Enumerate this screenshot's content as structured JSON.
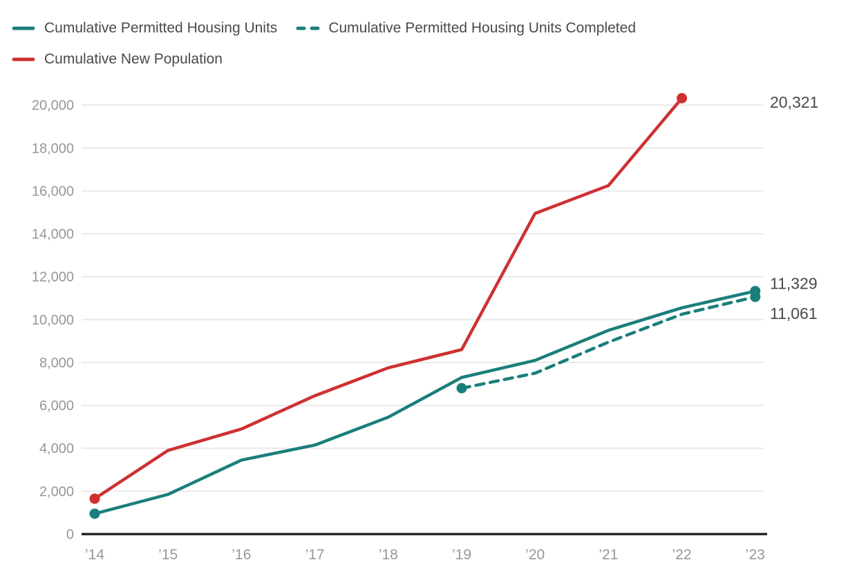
{
  "page": {
    "background": "#ffffff"
  },
  "legend": {
    "position": "top-left",
    "text_color": "#4a4a4a",
    "items": [
      {
        "label": "Cumulative Permitted Housing Units",
        "style": "solid",
        "color": "#1a7f7a"
      },
      {
        "label": "Cumulative Permitted Housing Units Completed",
        "style": "dashed",
        "color": "#1a7f7a"
      },
      {
        "label": "Cumulative New Population",
        "style": "solid",
        "color": "#ce3131"
      }
    ]
  },
  "chart_data": {
    "type": "line",
    "x": [
      "’14",
      "’15",
      "’16",
      "’17",
      "’18",
      "’19",
      "’20",
      "’21",
      "’22",
      "’23"
    ],
    "xlabel": "",
    "ylabel": "",
    "ylim": [
      0,
      20000
    ],
    "ytick_values": [
      0,
      2000,
      4000,
      6000,
      8000,
      10000,
      12000,
      14000,
      16000,
      18000,
      20000
    ],
    "ytick_labels": [
      "0",
      "2,000",
      "4,000",
      "6,000",
      "8,000",
      "10,000",
      "12,000",
      "14,000",
      "16,000",
      "18,000",
      "20,000"
    ],
    "grid": "horizontal",
    "legend_position": "top-left",
    "axis_color": "#262626",
    "grid_color": "#e9e9e9",
    "tick_label_color": "#979797",
    "end_label_color": "#4a4a4a",
    "series": [
      {
        "name": "Cumulative Permitted Housing Units",
        "style": "solid",
        "color": "#1a7f7a",
        "values": [
          950,
          1850,
          3450,
          4150,
          5450,
          7300,
          8100,
          9500,
          10550,
          11329
        ],
        "end_label": "11,329"
      },
      {
        "name": "Cumulative Permitted Housing Units Completed",
        "style": "dashed",
        "color": "#1a7f7a",
        "values": [
          null,
          null,
          null,
          null,
          null,
          6800,
          7500,
          8950,
          10250,
          11061
        ],
        "end_label": "11,061"
      },
      {
        "name": "Cumulative New Population",
        "style": "solid",
        "color": "#ce3131",
        "values": [
          1650,
          3900,
          4900,
          6450,
          7750,
          8600,
          14950,
          16250,
          20321,
          null
        ],
        "end_label": "20,321"
      }
    ]
  }
}
